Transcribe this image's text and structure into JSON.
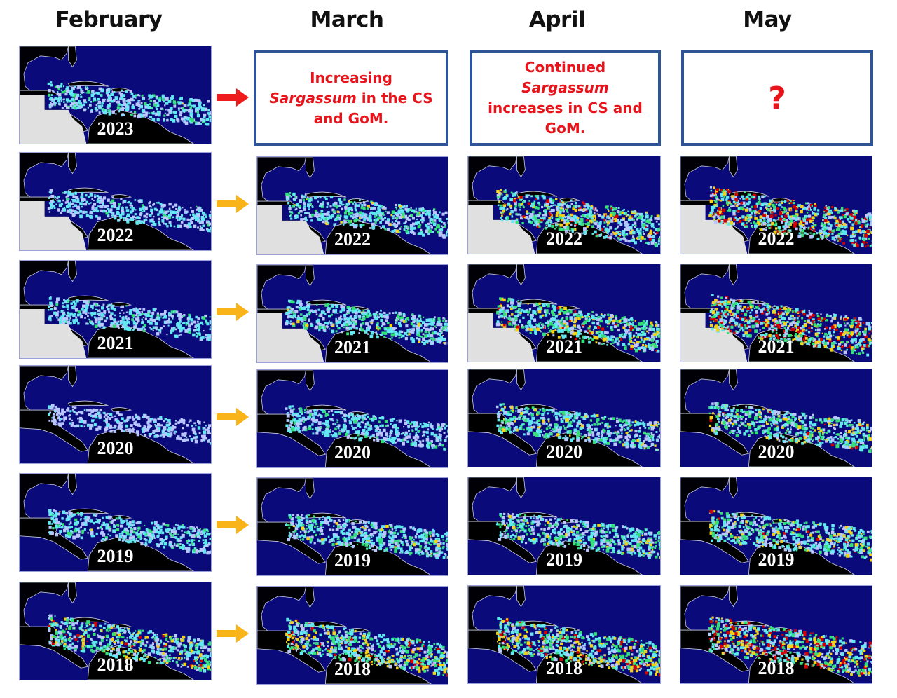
{
  "headers": {
    "february": "February",
    "march": "March",
    "april": "April",
    "may": "May"
  },
  "notes": {
    "march": {
      "pre": "Increasing ",
      "italic": "Sargassum",
      "post": " in the CS and GoM."
    },
    "april": {
      "pre": "Continued ",
      "italic": "Sargassum",
      "post": " increases in CS and GoM."
    },
    "may": {
      "text": "?"
    }
  },
  "colors": {
    "ocean": "#0a0a7a",
    "land": "#000000",
    "masked": "#e0e0e0",
    "note_text": "#e8141b",
    "note_border": "#2f5597",
    "arrow_current": "#ee1c1c",
    "arrow_past": "#f8b418"
  },
  "legend_meaning": "Sargassum density: white/cyan (low) to green, yellow, red (high)",
  "rows": [
    {
      "year": "2023",
      "arrow": "red",
      "february": "2023",
      "march": null,
      "april": null,
      "may": null
    },
    {
      "year": "2022",
      "arrow": "gold",
      "february": "2022",
      "march": "2022",
      "april": "2022",
      "may": "2022"
    },
    {
      "year": "2021",
      "arrow": "gold",
      "february": "2021",
      "march": "2021",
      "april": "2021",
      "may": "2021"
    },
    {
      "year": "2020",
      "arrow": "gold",
      "february": "2020",
      "march": "2020",
      "april": "2020",
      "may": "2020"
    },
    {
      "year": "2019",
      "arrow": "gold",
      "february": "2019",
      "march": "2019",
      "april": "2019",
      "may": "2019"
    },
    {
      "year": "2018",
      "arrow": "gold",
      "february": "2018",
      "march": "2018",
      "april": "2018",
      "may": "2018"
    }
  ]
}
